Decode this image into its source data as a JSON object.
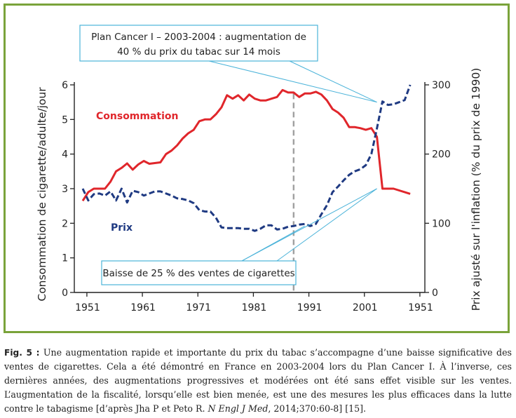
{
  "chart_data": {
    "type": "line",
    "x_ticks": [
      "1951",
      "1961",
      "1971",
      "1981",
      "1991",
      "2001",
      "1951"
    ],
    "left_axis": {
      "label": "Consommation de cigarette/adulte/jour",
      "ticks": [
        "0",
        "1",
        "2",
        "3",
        "4",
        "5",
        "6"
      ],
      "ylim": [
        0,
        6
      ]
    },
    "right_axis": {
      "label": "Prix ajusté sur l'inflation (% du prix de 1990)",
      "ticks": [
        "0",
        "100",
        "200",
        "300"
      ],
      "ylim": [
        0,
        300
      ]
    },
    "x_range": [
      1950,
      2010
    ],
    "series": [
      {
        "name": "Consommation",
        "axis": "left",
        "color": "#e0262b",
        "style": "solid",
        "x": [
          1950,
          1951,
          1952,
          1953,
          1954,
          1955,
          1956,
          1957,
          1958,
          1959,
          1960,
          1961,
          1962,
          1963,
          1964,
          1965,
          1966,
          1967,
          1968,
          1969,
          1970,
          1971,
          1972,
          1973,
          1974,
          1975,
          1976,
          1977,
          1978,
          1979,
          1980,
          1981,
          1982,
          1983,
          1984,
          1985,
          1986,
          1987,
          1988,
          1989,
          1990,
          1991,
          1992,
          1993,
          1994,
          1995,
          1996,
          1997,
          1998,
          1999,
          2000,
          2001,
          2002,
          2003,
          2004,
          2005,
          2006,
          2007,
          2008,
          2009
        ],
        "y": [
          2.65,
          2.9,
          3.0,
          3.0,
          3.0,
          3.2,
          3.5,
          3.6,
          3.73,
          3.55,
          3.7,
          3.8,
          3.72,
          3.74,
          3.76,
          4.0,
          4.1,
          4.25,
          4.45,
          4.6,
          4.7,
          4.95,
          5.0,
          5.0,
          5.15,
          5.35,
          5.7,
          5.6,
          5.7,
          5.55,
          5.72,
          5.6,
          5.55,
          5.55,
          5.6,
          5.65,
          5.85,
          5.78,
          5.78,
          5.65,
          5.75,
          5.75,
          5.8,
          5.72,
          5.55,
          5.3,
          5.2,
          5.05,
          4.78,
          4.78,
          4.75,
          4.7,
          4.75,
          4.5,
          3.0,
          3.0,
          3.0,
          2.95,
          2.9,
          2.85
        ]
      },
      {
        "name": "Prix",
        "axis": "right",
        "color": "#1f3a82",
        "style": "dashed",
        "x": [
          1950,
          1951,
          1952,
          1953,
          1954,
          1955,
          1956,
          1957,
          1958,
          1959,
          1960,
          1961,
          1962,
          1963,
          1964,
          1965,
          1966,
          1967,
          1968,
          1969,
          1970,
          1971,
          1972,
          1973,
          1974,
          1975,
          1976,
          1977,
          1978,
          1979,
          1980,
          1981,
          1982,
          1983,
          1984,
          1985,
          1986,
          1987,
          1988,
          1989,
          1990,
          1991,
          1992,
          1993,
          1994,
          1995,
          1996,
          1997,
          1998,
          1999,
          2000,
          2001,
          2002,
          2003,
          2004,
          2005,
          2006,
          2007,
          2008,
          2009
        ],
        "y": [
          150,
          133,
          142,
          143,
          140,
          146,
          133,
          150,
          130,
          147,
          145,
          140,
          143,
          146,
          146,
          143,
          140,
          136,
          135,
          133,
          129,
          119,
          117,
          117,
          108,
          94,
          93,
          93,
          93,
          92,
          92,
          89,
          92,
          97,
          97,
          91,
          92,
          95,
          96,
          98,
          99,
          96,
          99,
          113,
          126,
          145,
          153,
          162,
          170,
          175,
          178,
          184,
          200,
          237,
          276,
          271,
          272,
          275,
          278,
          300
        ]
      }
    ],
    "legend": "inline labels",
    "grid": false,
    "annotations": [
      {
        "text_lines": [
          "Plan Cancer I – 2003-2004 : augmentation de",
          "40 % du prix du tabac sur 14 mois"
        ],
        "targets": [
          [
            2003,
            275,
            "right"
          ]
        ]
      },
      {
        "text_lines": [
          "Baisse de 25 % des ventes de cigarettes"
        ],
        "targets": [
          [
            1990,
            96,
            "right"
          ],
          [
            2003,
            3.0,
            "left"
          ]
        ]
      }
    ],
    "reference_line": {
      "x": 1988,
      "style": "dashed",
      "color": "#a0a0a0"
    }
  },
  "caption": {
    "fig_label": "Fig. 5 :",
    "text": " Une augmentation rapide et importante du prix du tabac s’accompagne d’une baisse significative des ventes de cigarettes. Cela a été démontré en France en 2003-2004 lors du Plan Cancer I. À l’inverse, ces dernières années, des augmentations progressives et modérées ont été sans effet visible sur les ventes. L’augmentation de la fiscalité, lorsqu’elle est bien menée, est une des mesures les plus efficaces dans la lutte contre le tabagisme [d’après Jha P et Peto R. ",
    "journal": "N Engl J Med",
    "ref": ", 2014;370:60-8] [15]."
  },
  "colors": {
    "frame_border": "#7aa33a",
    "callout_border": "#4bb3d9",
    "consommation": "#e0262b",
    "prix": "#1f3a82"
  }
}
